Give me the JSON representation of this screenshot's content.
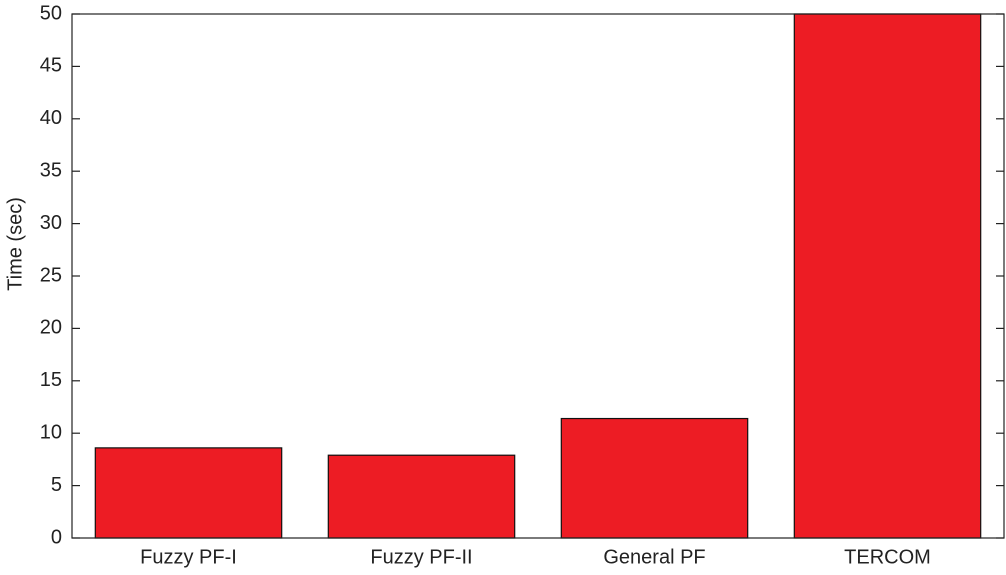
{
  "chart_data": {
    "type": "bar",
    "y_label": "Time (sec)",
    "categories": [
      "Fuzzy PF-I",
      "Fuzzy PF-II",
      "General PF",
      "TERCOM"
    ],
    "values": [
      8.6,
      7.9,
      11.4,
      50
    ],
    "color": "#ed1c24",
    "ylim": [
      0,
      50
    ],
    "yticks": [
      0,
      5,
      10,
      15,
      20,
      25,
      30,
      35,
      40,
      45,
      50
    ]
  }
}
